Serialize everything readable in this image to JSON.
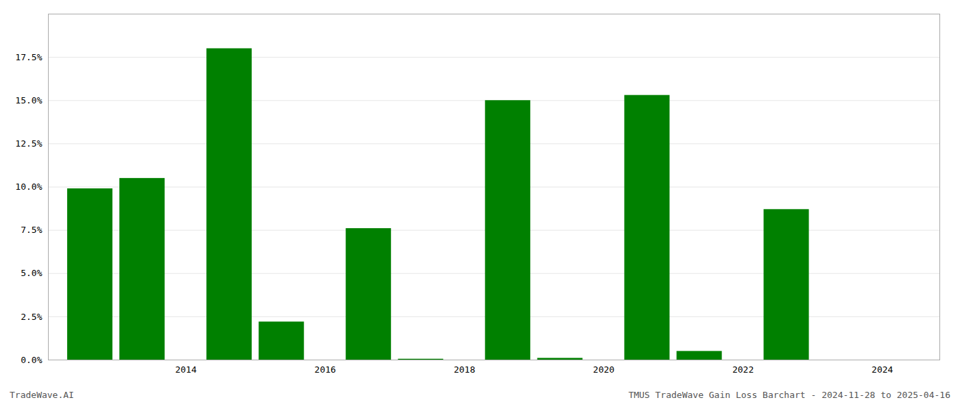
{
  "chart_data": {
    "type": "bar",
    "x": [
      2013.0,
      2013.75,
      2015.0,
      2015.75,
      2017.0,
      2017.75,
      2019.0,
      2019.75,
      2021.0,
      2021.75,
      2023.0,
      2023.75
    ],
    "values": [
      0.099,
      0.105,
      0.18,
      0.022,
      0.076,
      0.0005,
      0.15,
      0.001,
      0.153,
      0.005,
      0.087,
      0.0
    ],
    "color": "#008000",
    "xlim": [
      2012.4,
      2025.2
    ],
    "xticks": [
      {
        "value": 2014.375,
        "label": "2014"
      },
      {
        "value": 2016.375,
        "label": "2016"
      },
      {
        "value": 2018.375,
        "label": "2018"
      },
      {
        "value": 2020.375,
        "label": "2020"
      },
      {
        "value": 2022.375,
        "label": "2022"
      },
      {
        "value": 2024.375,
        "label": "2024"
      }
    ],
    "ylim": [
      0,
      0.2
    ],
    "yticks": [
      {
        "value": 0.0,
        "label": "0.0%"
      },
      {
        "value": 0.025,
        "label": "2.5%"
      },
      {
        "value": 0.05,
        "label": "5.0%"
      },
      {
        "value": 0.075,
        "label": "7.5%"
      },
      {
        "value": 0.1,
        "label": "10.0%"
      },
      {
        "value": 0.125,
        "label": "12.5%"
      },
      {
        "value": 0.15,
        "label": "15.0%"
      },
      {
        "value": 0.175,
        "label": "17.5%"
      },
      {
        "value": 0.2,
        "label": null
      }
    ],
    "grid": true,
    "annotations": [
      "TradeWave.AI",
      "TMUS TradeWave Gain Loss Barchart - 2024-11-28 to 2025-04-16"
    ]
  }
}
